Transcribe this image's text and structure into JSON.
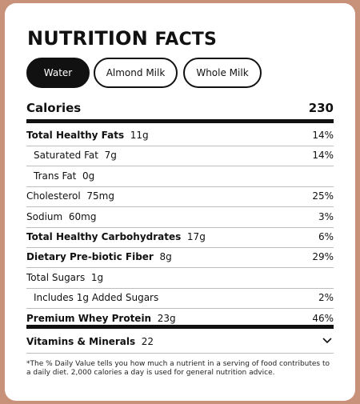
{
  "title": {
    "bold": "NUTRITION",
    "rest": "FACTS"
  },
  "tabs": [
    {
      "label": "Water",
      "active": true
    },
    {
      "label": "Almond Milk",
      "active": false
    },
    {
      "label": "Whole Milk",
      "active": false
    }
  ],
  "calories": {
    "label": "Calories",
    "value": "230"
  },
  "rows": [
    {
      "name": "Total Healthy Fats",
      "amount": "11g",
      "dv": "14%",
      "bold": true,
      "indent": false
    },
    {
      "name": "Saturated Fat",
      "amount": "7g",
      "dv": "14%",
      "bold": false,
      "indent": true
    },
    {
      "name": "Trans Fat",
      "amount": "0g",
      "dv": "",
      "bold": false,
      "indent": true
    },
    {
      "name": "Cholesterol",
      "amount": "75mg",
      "dv": "25%",
      "bold": false,
      "indent": false
    },
    {
      "name": "Sodium",
      "amount": "60mg",
      "dv": "3%",
      "bold": false,
      "indent": false
    },
    {
      "name": "Total Healthy Carbohydrates",
      "amount": "17g",
      "dv": "6%",
      "bold": true,
      "indent": false
    },
    {
      "name": "Dietary Pre-biotic Fiber",
      "amount": "8g",
      "dv": "29%",
      "bold": true,
      "indent": false
    },
    {
      "name": "Total Sugars",
      "amount": "1g",
      "dv": "",
      "bold": false,
      "indent": false
    },
    {
      "name": "Includes 1g Added Sugars",
      "amount": "",
      "dv": "2%",
      "bold": false,
      "indent": true
    },
    {
      "name": "Premium Whey Protein",
      "amount": "23g",
      "dv": "46%",
      "bold": true,
      "indent": false
    }
  ],
  "vitamins": {
    "name": "Vitamins & Minerals",
    "amount": "22",
    "icon": "chevron-down-icon"
  },
  "footnote": "*The % Daily Value tells you how much a nutrient in a serving of food contributes to a daily diet. 2,000 calories a day is used for general nutrition advice.",
  "colors": {
    "background": "#c8927a",
    "card": "#ffffff",
    "ink": "#111111",
    "divider": "#bdbdbd"
  }
}
